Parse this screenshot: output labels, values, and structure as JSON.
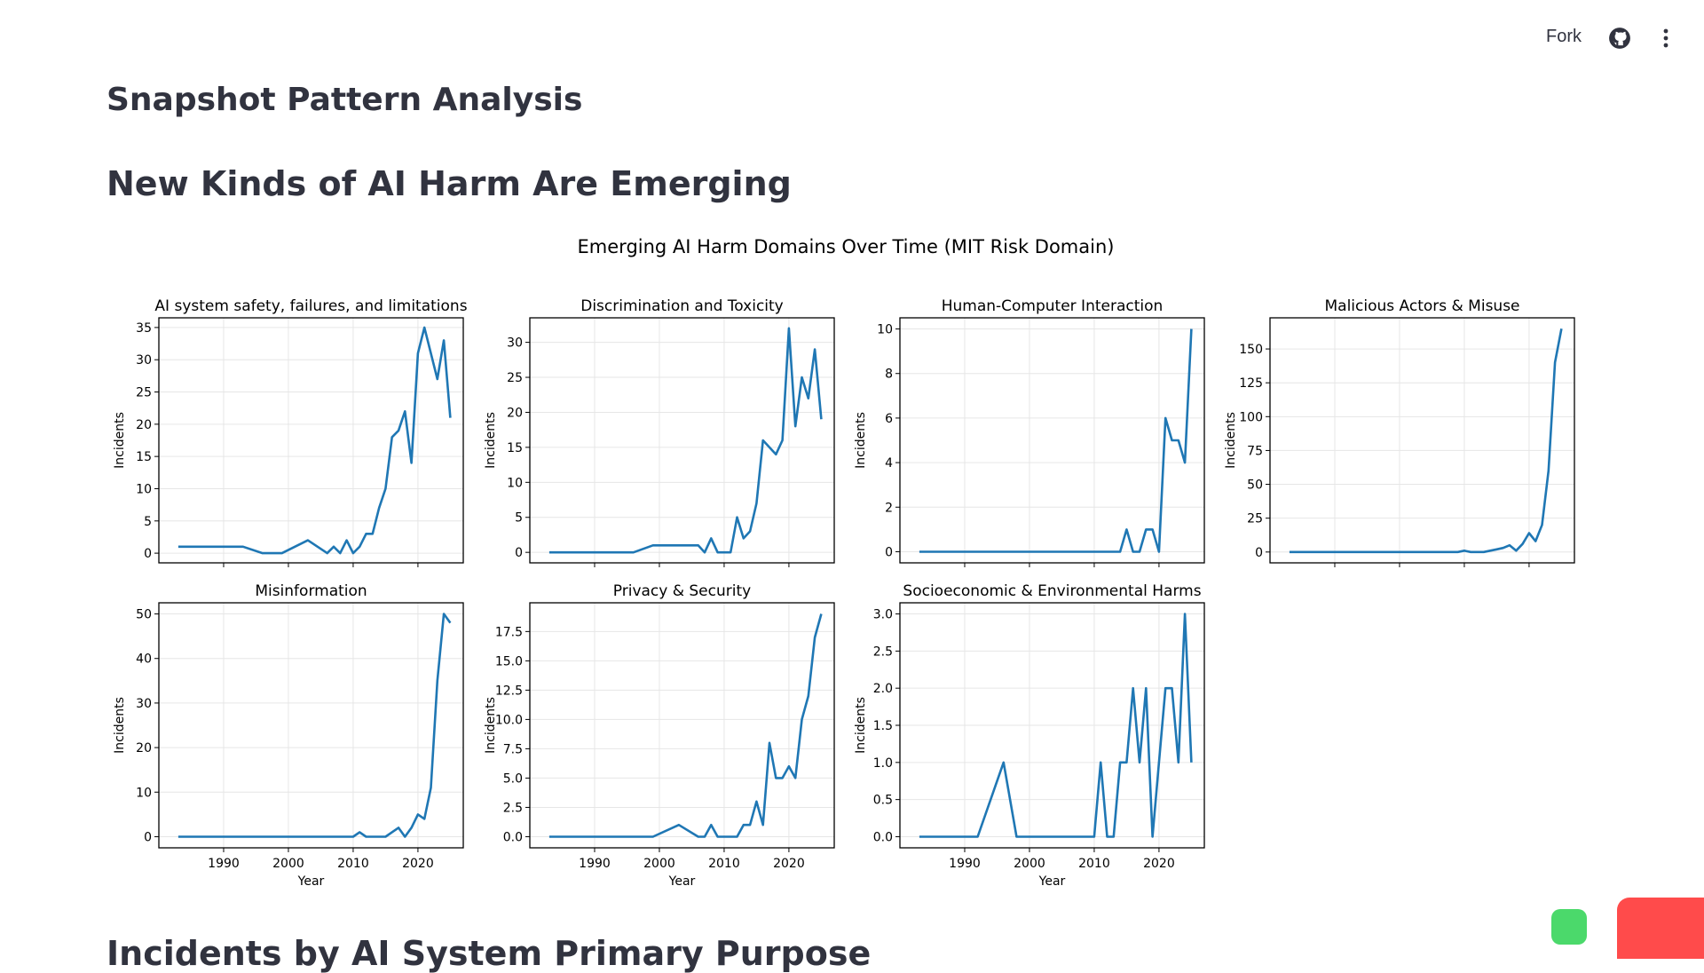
{
  "header": {
    "fork_label": "Fork",
    "github_icon": "github-icon",
    "menu_icon": "kebab-menu-icon"
  },
  "page": {
    "title": "Snapshot Pattern Analysis",
    "section_title": "New Kinds of AI Harm Are Emerging",
    "next_section_title": "Incidents by AI System Primary Purpose"
  },
  "chart_data": {
    "type": "line",
    "title": "Emerging AI Harm Domains Over Time (MIT Risk Domain)",
    "line_color": "#1f77b4",
    "grid": true,
    "xlim": [
      1980,
      2027
    ],
    "x_ticks": [
      1990,
      2000,
      2010,
      2020
    ],
    "panels": [
      {
        "title": "AI system safety, failures, and limitations",
        "ylabel": "Incidents",
        "xlabel": "",
        "ylim": [
          -1.5,
          36.5
        ],
        "yticks": [
          0,
          5,
          10,
          15,
          20,
          25,
          30,
          35
        ],
        "ytick_labels": [
          "0",
          "5",
          "10",
          "15",
          "20",
          "25",
          "30",
          "35"
        ],
        "x": [
          1983,
          1993,
          1996,
          1999,
          2003,
          2006,
          2007,
          2008,
          2009,
          2010,
          2011,
          2012,
          2013,
          2014,
          2015,
          2016,
          2017,
          2018,
          2019,
          2020,
          2021,
          2022,
          2023,
          2024,
          2025
        ],
        "y": [
          1,
          1,
          0,
          0,
          2,
          0,
          1,
          0,
          2,
          0,
          1,
          3,
          3,
          7,
          10,
          18,
          19,
          22,
          14,
          31,
          35,
          31,
          27,
          33,
          21
        ]
      },
      {
        "title": "Discrimination and Toxicity",
        "ylabel": "Incidents",
        "xlabel": "",
        "ylim": [
          -1.5,
          33.5
        ],
        "yticks": [
          0,
          5,
          10,
          15,
          20,
          25,
          30
        ],
        "ytick_labels": [
          "0",
          "5",
          "10",
          "15",
          "20",
          "25",
          "30"
        ],
        "x": [
          1983,
          1996,
          1999,
          2005,
          2006,
          2007,
          2008,
          2009,
          2010,
          2011,
          2012,
          2013,
          2014,
          2015,
          2016,
          2017,
          2018,
          2019,
          2020,
          2021,
          2022,
          2023,
          2024,
          2025
        ],
        "y": [
          0,
          0,
          1,
          1,
          1,
          0,
          2,
          0,
          0,
          0,
          5,
          2,
          3,
          7,
          16,
          15,
          14,
          16,
          32,
          18,
          25,
          22,
          29,
          19
        ]
      },
      {
        "title": "Human-Computer Interaction",
        "ylabel": "Incidents",
        "xlabel": "",
        "ylim": [
          -0.5,
          10.5
        ],
        "yticks": [
          0,
          2,
          4,
          6,
          8,
          10
        ],
        "ytick_labels": [
          "0",
          "2",
          "4",
          "6",
          "8",
          "10"
        ],
        "x": [
          1983,
          2014,
          2015,
          2016,
          2017,
          2018,
          2019,
          2020,
          2021,
          2022,
          2023,
          2024,
          2025
        ],
        "y": [
          0,
          0,
          1,
          0,
          0,
          1,
          1,
          0,
          6,
          5,
          5,
          4,
          10
        ]
      },
      {
        "title": "Malicious Actors & Misuse",
        "ylabel": "Incidents",
        "xlabel": "",
        "ylim": [
          -8,
          173
        ],
        "yticks": [
          0,
          25,
          50,
          75,
          100,
          125,
          150
        ],
        "ytick_labels": [
          "0",
          "25",
          "50",
          "75",
          "100",
          "125",
          "150"
        ],
        "x": [
          1983,
          2009,
          2010,
          2011,
          2012,
          2013,
          2014,
          2015,
          2016,
          2017,
          2018,
          2019,
          2020,
          2021,
          2022,
          2023,
          2024,
          2025
        ],
        "y": [
          0,
          0,
          1,
          0,
          0,
          0,
          1,
          2,
          3,
          5,
          1,
          6,
          14,
          8,
          20,
          60,
          140,
          165
        ]
      },
      {
        "title": "Misinformation",
        "ylabel": "Incidents",
        "xlabel": "Year",
        "ylim": [
          -2.5,
          52.5
        ],
        "yticks": [
          0,
          10,
          20,
          30,
          40,
          50
        ],
        "ytick_labels": [
          "0",
          "10",
          "20",
          "30",
          "40",
          "50"
        ],
        "x": [
          1983,
          2010,
          2011,
          2012,
          2013,
          2014,
          2015,
          2016,
          2017,
          2018,
          2019,
          2020,
          2021,
          2022,
          2023,
          2024,
          2025
        ],
        "y": [
          0,
          0,
          1,
          0,
          0,
          0,
          0,
          1,
          2,
          0,
          2,
          5,
          4,
          11,
          35,
          50,
          48
        ]
      },
      {
        "title": "Privacy & Security",
        "ylabel": "Incidents",
        "xlabel": "Year",
        "ylim": [
          -0.95,
          19.95
        ],
        "yticks": [
          0,
          2.5,
          5,
          7.5,
          10,
          12.5,
          15,
          17.5
        ],
        "ytick_labels": [
          "0.0",
          "2.5",
          "5.0",
          "7.5",
          "10.0",
          "12.5",
          "15.0",
          "17.5"
        ],
        "x": [
          1983,
          1999,
          2003,
          2006,
          2007,
          2008,
          2009,
          2010,
          2011,
          2012,
          2013,
          2014,
          2015,
          2016,
          2017,
          2018,
          2019,
          2020,
          2021,
          2022,
          2023,
          2024,
          2025
        ],
        "y": [
          0,
          0,
          1,
          0,
          0,
          1,
          0,
          0,
          0,
          0,
          1,
          1,
          3,
          1,
          8,
          5,
          5,
          6,
          5,
          10,
          12,
          17,
          19
        ]
      },
      {
        "title": "Socioeconomic & Environmental Harms",
        "ylabel": "Incidents",
        "xlabel": "Year",
        "ylim": [
          -0.15,
          3.15
        ],
        "yticks": [
          0,
          0.5,
          1,
          1.5,
          2,
          2.5,
          3
        ],
        "ytick_labels": [
          "0.0",
          "0.5",
          "1.0",
          "1.5",
          "2.0",
          "2.5",
          "3.0"
        ],
        "x": [
          1983,
          1992,
          1996,
          1998,
          2010,
          2011,
          2012,
          2013,
          2014,
          2015,
          2016,
          2017,
          2018,
          2019,
          2020,
          2021,
          2022,
          2023,
          2024,
          2025
        ],
        "y": [
          0,
          0,
          1,
          0,
          0,
          1,
          0,
          0,
          1,
          1,
          2,
          1,
          2,
          0,
          1,
          2,
          2,
          1,
          3,
          1
        ]
      }
    ]
  }
}
